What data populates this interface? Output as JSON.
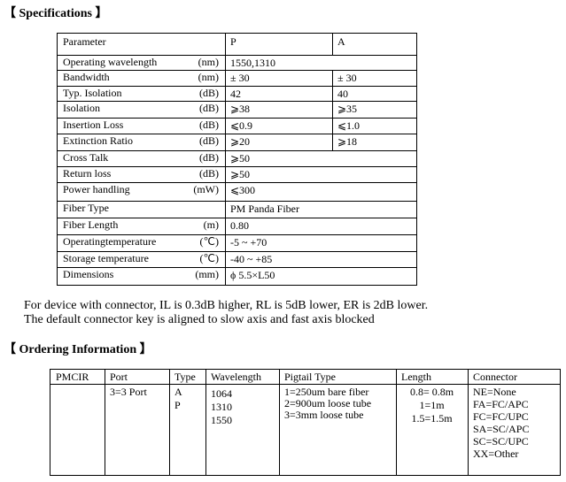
{
  "specifications": {
    "heading": "【 Specifications 】",
    "headers": [
      "Parameter",
      "P",
      "A"
    ],
    "rows": [
      {
        "param": "Operating wavelength",
        "unit": "(nm)",
        "p": "1550,1310",
        "a": null
      },
      {
        "param": "Bandwidth",
        "unit": "(nm)",
        "p": "± 30",
        "a": "± 30"
      },
      {
        "param": "Typ. Isolation",
        "unit": "(dB)",
        "p": "42",
        "a": "40"
      },
      {
        "param": "Isolation",
        "unit": "(dB)",
        "p": "⩾38",
        "a": "⩾35"
      },
      {
        "param": "Insertion Loss",
        "unit": "(dB)",
        "p": "⩽0.9",
        "a": "⩽1.0"
      },
      {
        "param": "Extinction Ratio",
        "unit": "(dB)",
        "p": "⩾20",
        "a": "⩾18"
      },
      {
        "param": "Cross Talk",
        "unit": "(dB)",
        "p": "⩾50",
        "a": null
      },
      {
        "param": "Return loss",
        "unit": "(dB)",
        "p": "⩾50",
        "a": null
      },
      {
        "param": "Power handling",
        "unit": "(mW)",
        "p": "⩽300",
        "a": null
      },
      {
        "param": "Fiber Type",
        "unit": "",
        "p": "PM Panda Fiber",
        "a": null
      },
      {
        "param": "Fiber Length",
        "unit": "(m)",
        "p": "0.80",
        "a": null
      },
      {
        "param": "Operatingtemperature",
        "unit": "(℃)",
        "p": "-5 ~ +70",
        "a": null
      },
      {
        "param": "Storage temperature",
        "unit": "(℃)",
        "p": "-40 ~ +85",
        "a": null
      },
      {
        "param": "Dimensions",
        "unit": "(mm)",
        "p": "ϕ 5.5×L50",
        "a": null
      }
    ]
  },
  "notes": [
    "For device with connector, IL is 0.3dB higher, RL is 5dB lower, ER is 2dB lower.",
    "The default connector key is aligned to slow axis and fast axis blocked"
  ],
  "ordering": {
    "heading": "【 Ordering Information 】",
    "headers": [
      "PMCIR",
      "Port",
      "Type",
      "Wavelength",
      "Pigtail Type",
      "Length",
      "Connector"
    ],
    "columns": [
      [],
      [
        "3=3 Port"
      ],
      [
        "A",
        "P"
      ],
      [
        "1064",
        "1310",
        "1550"
      ],
      [
        "1=250um bare fiber",
        "2=900um loose tube",
        "3=3mm loose tube"
      ],
      [
        "0.8= 0.8m",
        "1=1m",
        "1.5=1.5m"
      ],
      [
        "NE=None",
        "FA=FC/APC",
        "FC=FC/UPC",
        "SA=SC/APC",
        "SC=SC/UPC",
        "XX=Other"
      ]
    ]
  }
}
